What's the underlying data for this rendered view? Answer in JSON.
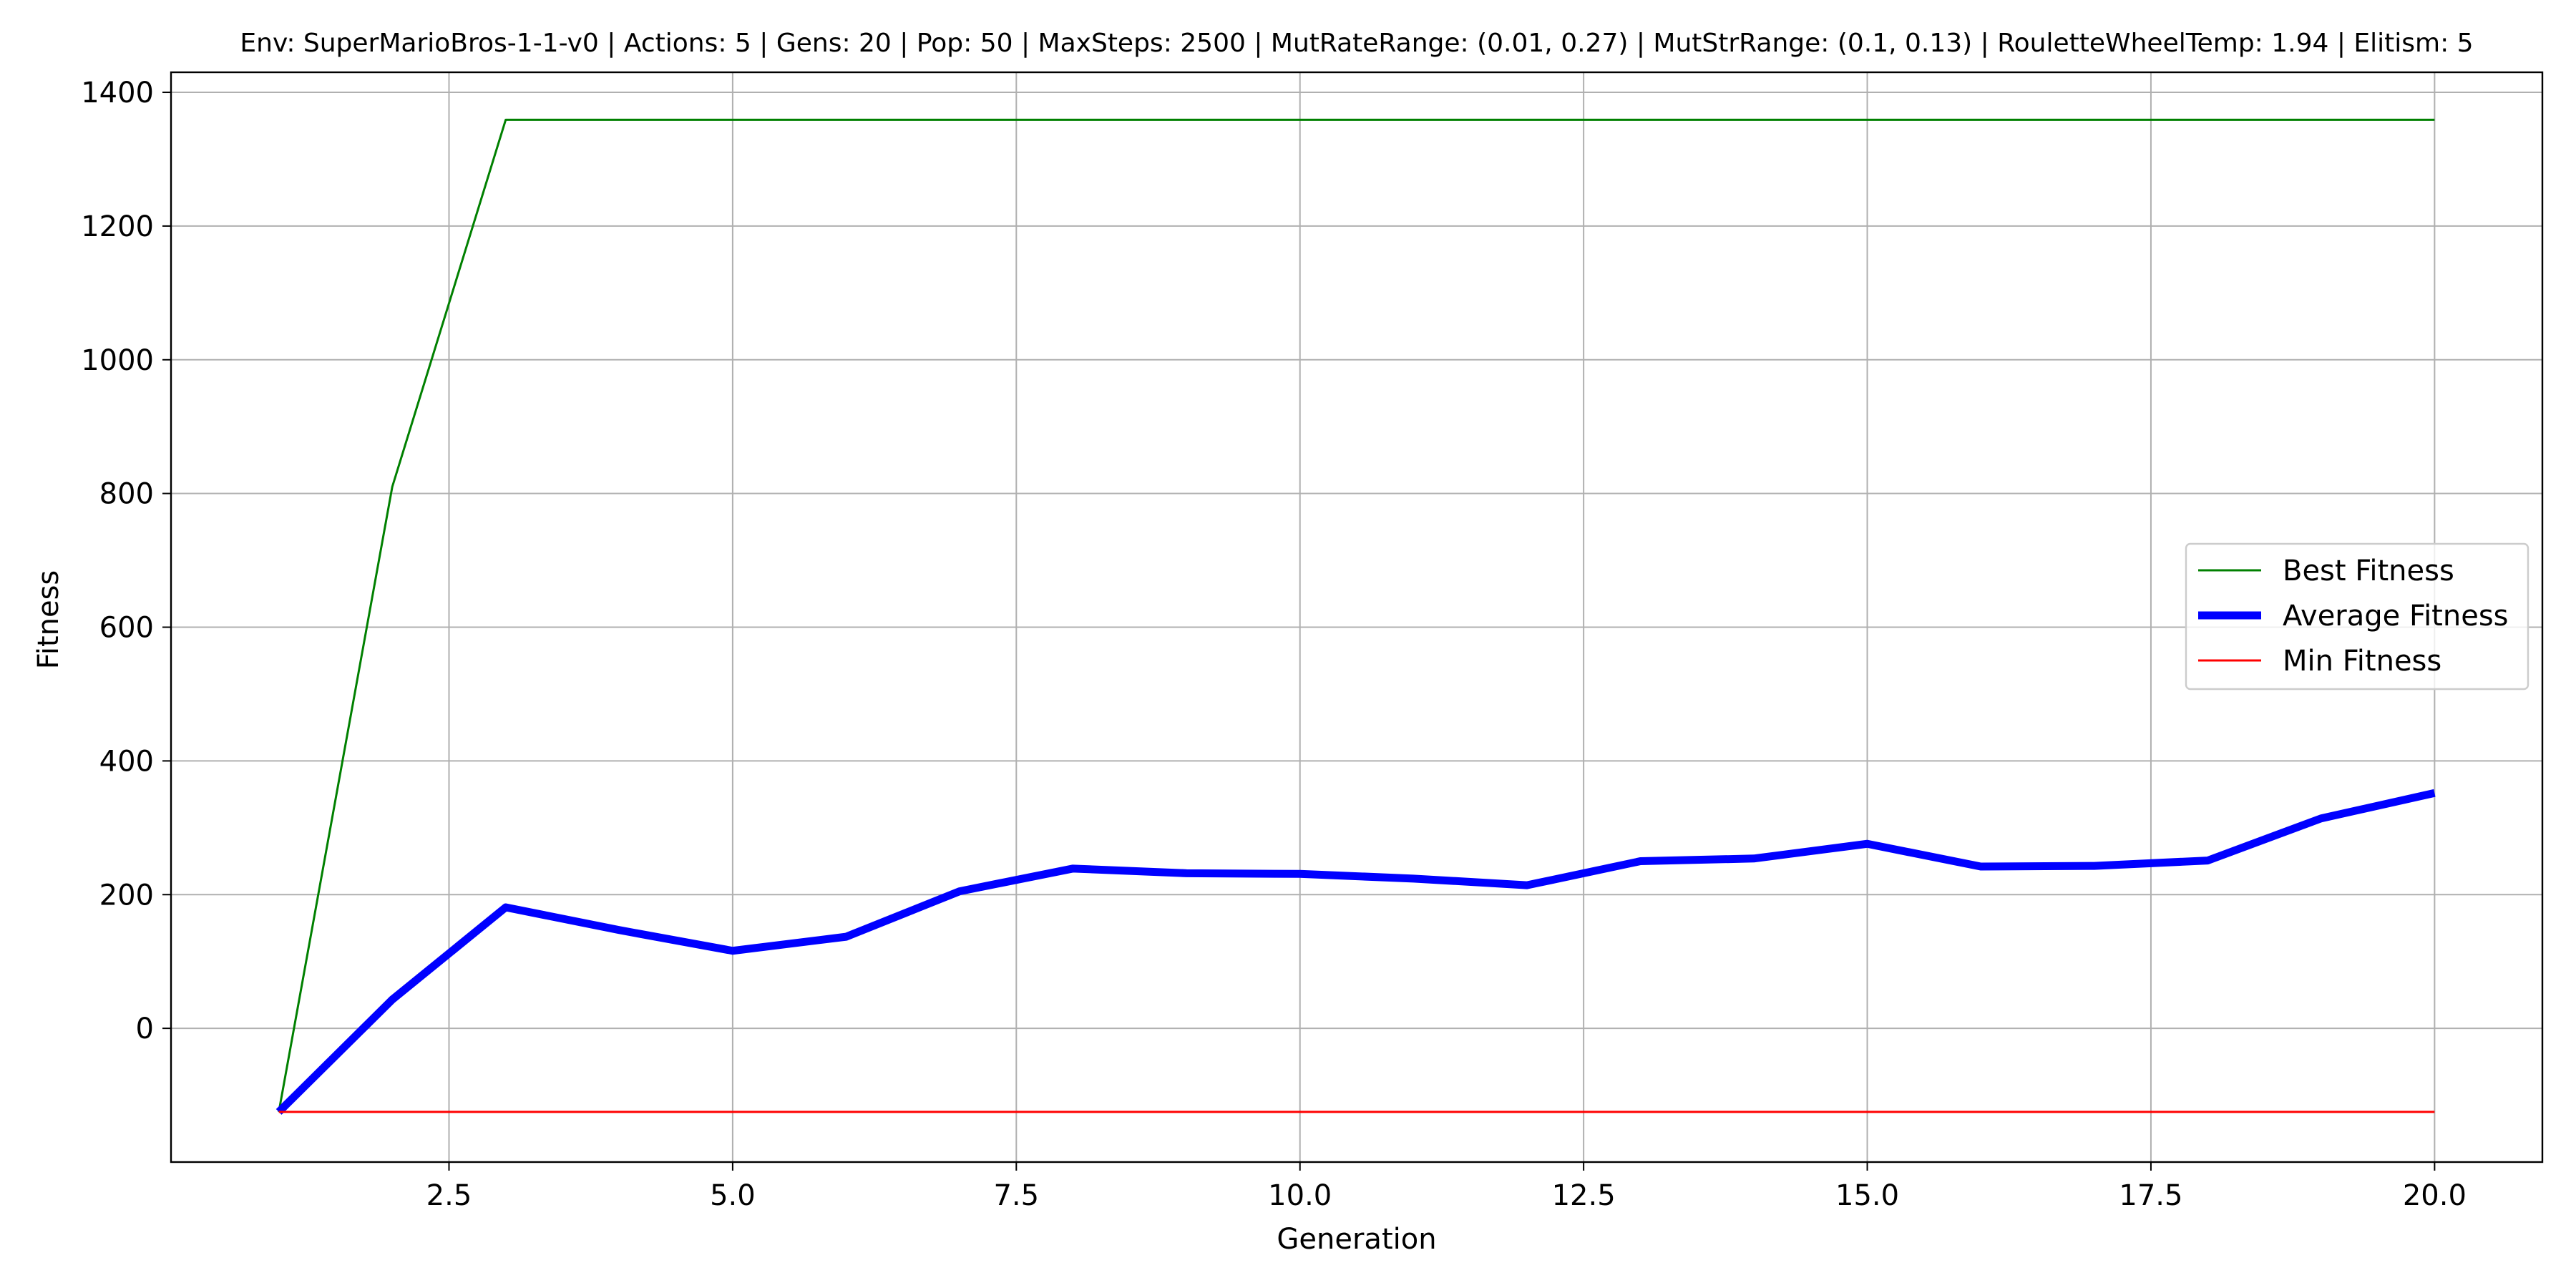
{
  "chart_data": {
    "type": "line",
    "title": "Env: SuperMarioBros-1-1-v0 | Actions: 5 | Gens: 20 | Pop: 50 | MaxSteps: 2500 | MutRateRange: (0.01, 0.27) | MutStrRange: (0.1, 0.13) | RouletteWheelTemp: 1.94 | Elitism: 5",
    "xlabel": "Generation",
    "ylabel": "Fitness",
    "xlim": [
      0.05,
      20.95
    ],
    "ylim": [
      -200,
      1430
    ],
    "xticks": [
      2.5,
      5.0,
      7.5,
      10.0,
      12.5,
      15.0,
      17.5,
      20.0
    ],
    "xtick_labels": [
      "2.5",
      "5.0",
      "7.5",
      "10.0",
      "12.5",
      "15.0",
      "17.5",
      "20.0"
    ],
    "yticks": [
      0,
      200,
      400,
      600,
      800,
      1000,
      1200,
      1400
    ],
    "ytick_labels": [
      "0",
      "200",
      "400",
      "600",
      "800",
      "1000",
      "1200",
      "1400"
    ],
    "grid": true,
    "legend_position": "center-right",
    "x": [
      1,
      2,
      3,
      4,
      5,
      6,
      7,
      8,
      9,
      10,
      11,
      12,
      13,
      14,
      15,
      16,
      17,
      18,
      19,
      20
    ],
    "series": [
      {
        "name": "Best Fitness",
        "color": "#008000",
        "values": [
          -125,
          810,
          1359,
          1359,
          1359,
          1359,
          1359,
          1359,
          1359,
          1359,
          1359,
          1359,
          1359,
          1359,
          1359,
          1359,
          1359,
          1359,
          1359,
          1359
        ]
      },
      {
        "name": "Average Fitness",
        "color": "#0000ff",
        "values": [
          -125,
          43,
          181,
          147,
          116,
          137,
          205,
          239,
          232,
          231,
          224,
          214,
          250,
          254,
          276,
          242,
          243,
          251,
          314,
          352
        ]
      },
      {
        "name": "Min Fitness",
        "color": "#ff0000",
        "values": [
          -125,
          -125,
          -125,
          -125,
          -125,
          -125,
          -125,
          -125,
          -125,
          -125,
          -125,
          -125,
          -125,
          -125,
          -125,
          -125,
          -125,
          -125,
          -125,
          -125
        ]
      }
    ]
  }
}
